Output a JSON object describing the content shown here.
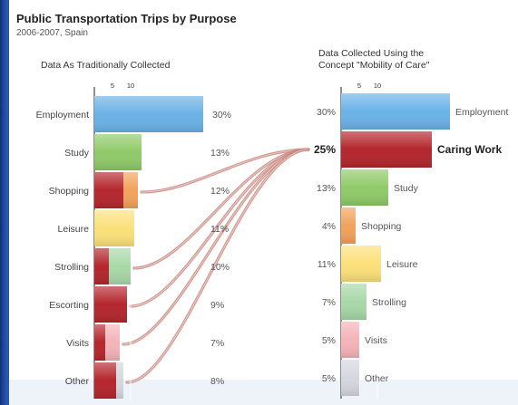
{
  "colors": {
    "Employment": "#6ab2e6",
    "Caring Work": "#b3262c",
    "Study": "#8fca68",
    "Shopping": "#f2a25b",
    "Leisure": "#fbe07a",
    "Strolling": "#a8d8a8",
    "Escorting": "#b3262c",
    "Visits": "#f4b3b8",
    "Other": "#d5d7de",
    "connector": "#c9877e"
  },
  "chart_data": {
    "title": "Public Transportation Trips by Purpose",
    "subtitle": "2006-2007, Spain",
    "type": "bar",
    "panels": [
      {
        "title": "Data As Traditionally Collected",
        "ticks": [
          "5",
          "10"
        ],
        "categories": [
          "Employment",
          "Study",
          "Shopping",
          "Leisure",
          "Strolling",
          "Escorting",
          "Visits",
          "Other"
        ],
        "values": [
          30,
          13,
          12,
          11,
          10,
          9,
          7,
          8
        ],
        "value_labels": [
          "30%",
          "13%",
          "12%",
          "11%",
          "10%",
          "9%",
          "7%",
          "8%"
        ],
        "care_part": [
          0,
          0,
          8,
          0,
          4,
          9,
          3,
          6
        ]
      },
      {
        "title": "Data Collected Using the\nConcept \"Mobility of Care\"",
        "ticks": [
          "5",
          "10"
        ],
        "categories": [
          "Employment",
          "Caring Work",
          "Study",
          "Shopping",
          "Leisure",
          "Strolling",
          "Visits",
          "Other"
        ],
        "values": [
          30,
          25,
          13,
          4,
          11,
          7,
          5,
          5
        ],
        "value_labels": [
          "30%",
          "25%",
          "13%",
          "4%",
          "11%",
          "7%",
          "5%",
          "5%"
        ]
      }
    ]
  }
}
